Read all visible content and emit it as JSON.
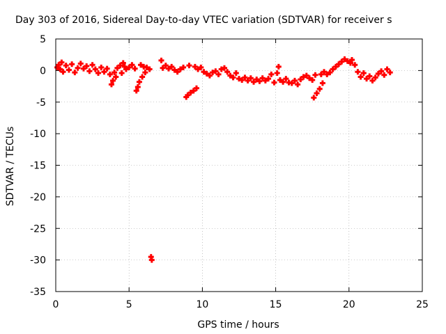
{
  "chart_data": {
    "type": "scatter",
    "title": "Day 303 of 2016, Sidereal Day-to-day VTEC variation (SDTVAR) for receiver s",
    "xlabel": "GPS time / hours",
    "ylabel": "SDTVAR / TECUs",
    "xlim": [
      0,
      25
    ],
    "ylim": [
      -35,
      5
    ],
    "xticks": [
      "0",
      "5",
      "10",
      "15",
      "20",
      "25"
    ],
    "yticks": [
      "5",
      "0",
      "-5",
      "-10",
      "-15",
      "-20",
      "-25",
      "-30",
      "-35"
    ],
    "grid": true,
    "marker_color": "#ff0000",
    "series": [
      {
        "points": [
          [
            0.1,
            0.5
          ],
          [
            0.2,
            0.9
          ],
          [
            0.3,
            0.2
          ],
          [
            0.4,
            1.3
          ],
          [
            0.5,
            -0.2
          ],
          [
            0.7,
            0.8
          ],
          [
            0.9,
            0.1
          ],
          [
            1.1,
            1.0
          ],
          [
            1.3,
            -0.3
          ],
          [
            1.5,
            0.4
          ],
          [
            1.7,
            1.1
          ],
          [
            1.9,
            0.3
          ],
          [
            2.1,
            0.7
          ],
          [
            2.3,
            -0.1
          ],
          [
            2.5,
            0.9
          ],
          [
            2.7,
            0.2
          ],
          [
            2.9,
            -0.4
          ],
          [
            3.1,
            0.5
          ],
          [
            3.3,
            -0.2
          ],
          [
            3.5,
            0.3
          ],
          [
            3.7,
            -0.6
          ],
          [
            3.8,
            -2.2
          ],
          [
            3.9,
            -1.6
          ],
          [
            4.0,
            -0.3
          ],
          [
            4.1,
            -1.0
          ],
          [
            4.2,
            0.4
          ],
          [
            4.4,
            0.8
          ],
          [
            4.5,
            -0.4
          ],
          [
            4.6,
            1.2
          ],
          [
            4.7,
            0.6
          ],
          [
            4.8,
            0.2
          ],
          [
            5.0,
            0.5
          ],
          [
            5.2,
            0.9
          ],
          [
            5.4,
            0.3
          ],
          [
            5.5,
            -3.2
          ],
          [
            5.6,
            -2.6
          ],
          [
            5.7,
            -1.8
          ],
          [
            5.8,
            0.9
          ],
          [
            5.9,
            -1.0
          ],
          [
            6.0,
            0.6
          ],
          [
            6.1,
            -0.3
          ],
          [
            6.2,
            0.5
          ],
          [
            6.4,
            0.2
          ],
          [
            6.5,
            -29.5
          ],
          [
            6.55,
            -30.0
          ],
          [
            7.2,
            1.6
          ],
          [
            7.3,
            0.4
          ],
          [
            7.5,
            0.8
          ],
          [
            7.7,
            0.3
          ],
          [
            7.9,
            0.6
          ],
          [
            8.1,
            0.1
          ],
          [
            8.3,
            -0.2
          ],
          [
            8.5,
            0.2
          ],
          [
            8.7,
            0.5
          ],
          [
            8.9,
            -4.2
          ],
          [
            9.0,
            -3.9
          ],
          [
            9.1,
            0.8
          ],
          [
            9.2,
            -3.5
          ],
          [
            9.4,
            -3.2
          ],
          [
            9.6,
            -2.8
          ],
          [
            9.5,
            0.6
          ],
          [
            9.7,
            0.2
          ],
          [
            9.9,
            0.5
          ],
          [
            10.1,
            -0.2
          ],
          [
            10.3,
            -0.5
          ],
          [
            10.5,
            -0.8
          ],
          [
            10.7,
            -0.3
          ],
          [
            10.9,
            -0.1
          ],
          [
            11.1,
            -0.6
          ],
          [
            11.3,
            0.2
          ],
          [
            11.5,
            0.4
          ],
          [
            11.7,
            -0.2
          ],
          [
            11.9,
            -0.8
          ],
          [
            12.1,
            -1.1
          ],
          [
            12.3,
            -0.4
          ],
          [
            12.5,
            -1.3
          ],
          [
            12.7,
            -1.5
          ],
          [
            12.9,
            -1.1
          ],
          [
            13.1,
            -1.6
          ],
          [
            13.3,
            -1.2
          ],
          [
            13.5,
            -1.8
          ],
          [
            13.7,
            -1.4
          ],
          [
            13.9,
            -1.7
          ],
          [
            14.1,
            -1.2
          ],
          [
            14.3,
            -1.6
          ],
          [
            14.5,
            -1.3
          ],
          [
            14.7,
            -0.6
          ],
          [
            14.9,
            -1.9
          ],
          [
            15.1,
            -0.4
          ],
          [
            15.2,
            0.6
          ],
          [
            15.3,
            -1.5
          ],
          [
            15.5,
            -1.8
          ],
          [
            15.7,
            -1.3
          ],
          [
            15.9,
            -1.9
          ],
          [
            16.1,
            -2.0
          ],
          [
            16.3,
            -1.6
          ],
          [
            16.5,
            -2.2
          ],
          [
            16.7,
            -1.4
          ],
          [
            16.9,
            -1.0
          ],
          [
            17.1,
            -0.8
          ],
          [
            17.3,
            -1.2
          ],
          [
            17.5,
            -1.5
          ],
          [
            17.6,
            -4.3
          ],
          [
            17.7,
            -0.7
          ],
          [
            17.8,
            -3.6
          ],
          [
            18.0,
            -2.9
          ],
          [
            18.1,
            -0.6
          ],
          [
            18.2,
            -2.0
          ],
          [
            18.3,
            -0.2
          ],
          [
            18.5,
            -0.6
          ],
          [
            18.7,
            -0.3
          ],
          [
            18.9,
            0.2
          ],
          [
            19.1,
            0.6
          ],
          [
            19.3,
            1.0
          ],
          [
            19.5,
            1.4
          ],
          [
            19.7,
            1.8
          ],
          [
            19.9,
            1.5
          ],
          [
            20.1,
            1.2
          ],
          [
            20.2,
            1.7
          ],
          [
            20.4,
            0.9
          ],
          [
            20.6,
            -0.2
          ],
          [
            20.8,
            -1.0
          ],
          [
            21.0,
            -0.4
          ],
          [
            21.2,
            -1.3
          ],
          [
            21.4,
            -0.9
          ],
          [
            21.6,
            -1.6
          ],
          [
            21.8,
            -1.1
          ],
          [
            22.0,
            -0.5
          ],
          [
            22.2,
            -0.1
          ],
          [
            22.4,
            -0.7
          ],
          [
            22.6,
            0.2
          ],
          [
            22.8,
            -0.3
          ]
        ]
      }
    ]
  }
}
